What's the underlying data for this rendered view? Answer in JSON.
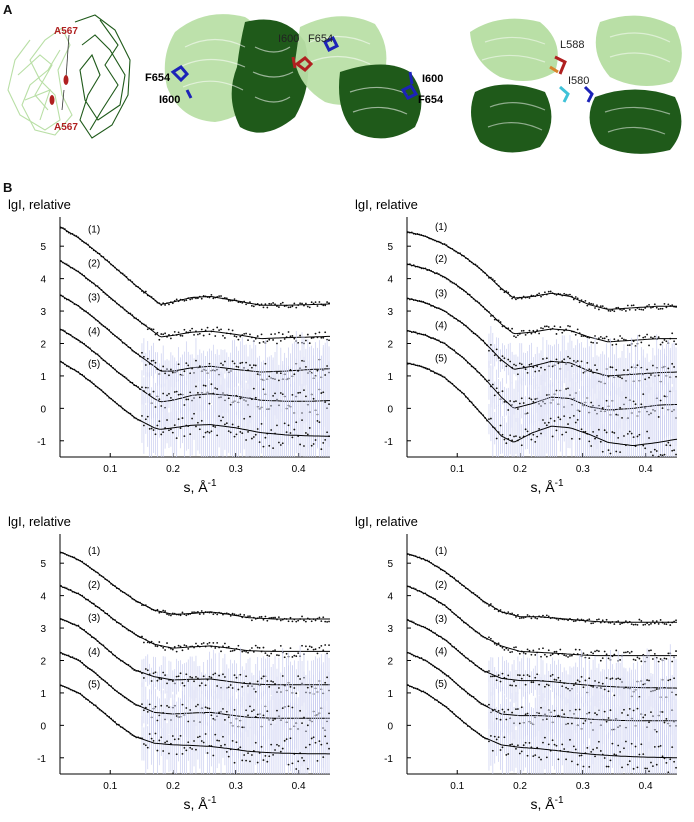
{
  "panel_a": {
    "letter": "A",
    "left_labels": [
      "A567",
      "A567"
    ],
    "middle_labels": [
      "F654",
      "I600",
      "I600",
      "F654",
      "I600",
      "F654"
    ],
    "right_labels": [
      "L588",
      "I580"
    ],
    "colors": {
      "light_green": "#b9dfa6",
      "dark_green": "#1f5a1a",
      "blue": "#1c23b8",
      "red": "#b02020",
      "orange": "#d9832a",
      "cyan": "#3fc2d8"
    }
  },
  "panel_b": {
    "letter": "B"
  },
  "chart_data": [
    {
      "type": "scatter",
      "ylabel": "lgI, relative",
      "xlabel": "s, Å",
      "xlabel_exp": "-1",
      "xlim": [
        0.02,
        0.45
      ],
      "ylim": [
        -1.5,
        5.9
      ],
      "xticks": [
        0.1,
        0.2,
        0.3,
        0.4
      ],
      "yticks": [
        -1,
        0,
        1,
        2,
        3,
        4,
        5
      ],
      "curve_labels": [
        "(1)",
        "(2)",
        "(3)",
        "(4)",
        "(5)"
      ],
      "series": [
        {
          "x": [
            0.02,
            0.05,
            0.08,
            0.11,
            0.14,
            0.17,
            0.18,
            0.2,
            0.23,
            0.26,
            0.3,
            0.34,
            0.38,
            0.42,
            0.45
          ],
          "y": [
            5.6,
            5.25,
            4.8,
            4.3,
            3.8,
            3.35,
            3.2,
            3.28,
            3.42,
            3.45,
            3.32,
            3.18,
            3.18,
            3.2,
            3.22
          ]
        },
        {
          "x": [
            0.02,
            0.05,
            0.08,
            0.11,
            0.14,
            0.17,
            0.18,
            0.2,
            0.23,
            0.26,
            0.3,
            0.34,
            0.38,
            0.42,
            0.45
          ],
          "y": [
            4.55,
            4.2,
            3.75,
            3.25,
            2.78,
            2.35,
            2.2,
            2.25,
            2.35,
            2.38,
            2.28,
            2.15,
            2.18,
            2.2,
            2.22
          ]
        },
        {
          "x": [
            0.02,
            0.05,
            0.08,
            0.11,
            0.14,
            0.17,
            0.18,
            0.2,
            0.23,
            0.26,
            0.3,
            0.34,
            0.38,
            0.42,
            0.45
          ],
          "y": [
            3.5,
            3.15,
            2.7,
            2.2,
            1.72,
            1.3,
            1.15,
            1.15,
            1.25,
            1.3,
            1.2,
            1.12,
            1.15,
            1.2,
            1.22
          ]
        },
        {
          "x": [
            0.02,
            0.05,
            0.08,
            0.11,
            0.14,
            0.17,
            0.18,
            0.2,
            0.23,
            0.26,
            0.3,
            0.34,
            0.38,
            0.42,
            0.45
          ],
          "y": [
            2.45,
            2.1,
            1.65,
            1.15,
            0.7,
            0.3,
            0.2,
            0.25,
            0.4,
            0.45,
            0.38,
            0.25,
            0.22,
            0.22,
            0.24
          ]
        },
        {
          "x": [
            0.02,
            0.05,
            0.08,
            0.11,
            0.14,
            0.17,
            0.18,
            0.2,
            0.23,
            0.26,
            0.3,
            0.34,
            0.38,
            0.42,
            0.45
          ],
          "y": [
            1.45,
            1.1,
            0.65,
            0.15,
            -0.3,
            -0.6,
            -0.65,
            -0.6,
            -0.52,
            -0.5,
            -0.6,
            -0.75,
            -0.82,
            -0.85,
            -0.86
          ]
        }
      ]
    },
    {
      "type": "scatter",
      "ylabel": "lgI, relative",
      "xlabel": "s, Å",
      "xlabel_exp": "-1",
      "xlim": [
        0.02,
        0.45
      ],
      "ylim": [
        -1.5,
        5.9
      ],
      "xticks": [
        0.1,
        0.2,
        0.3,
        0.4
      ],
      "yticks": [
        -1,
        0,
        1,
        2,
        3,
        4,
        5
      ],
      "curve_labels": [
        "(1)",
        "(2)",
        "(3)",
        "(4)",
        "(5)"
      ],
      "series": [
        {
          "x": [
            0.02,
            0.05,
            0.08,
            0.11,
            0.14,
            0.17,
            0.19,
            0.22,
            0.25,
            0.28,
            0.31,
            0.34,
            0.38,
            0.42,
            0.45
          ],
          "y": [
            5.45,
            5.3,
            5.05,
            4.7,
            4.25,
            3.7,
            3.4,
            3.45,
            3.55,
            3.45,
            3.2,
            3.05,
            3.1,
            3.15,
            3.15
          ]
        },
        {
          "x": [
            0.02,
            0.05,
            0.08,
            0.11,
            0.14,
            0.17,
            0.19,
            0.22,
            0.25,
            0.28,
            0.31,
            0.34,
            0.38,
            0.42,
            0.45
          ],
          "y": [
            4.45,
            4.3,
            4.05,
            3.65,
            3.15,
            2.6,
            2.3,
            2.35,
            2.45,
            2.4,
            2.2,
            2.05,
            2.1,
            2.15,
            2.15
          ]
        },
        {
          "x": [
            0.02,
            0.05,
            0.08,
            0.11,
            0.14,
            0.17,
            0.19,
            0.22,
            0.25,
            0.28,
            0.31,
            0.34,
            0.38,
            0.42,
            0.45
          ],
          "y": [
            3.4,
            3.25,
            3.0,
            2.6,
            2.1,
            1.5,
            1.2,
            1.3,
            1.45,
            1.4,
            1.15,
            1.0,
            1.05,
            1.1,
            1.12
          ]
        },
        {
          "x": [
            0.02,
            0.05,
            0.08,
            0.11,
            0.14,
            0.17,
            0.19,
            0.22,
            0.25,
            0.28,
            0.31,
            0.34,
            0.38,
            0.42,
            0.45
          ],
          "y": [
            2.4,
            2.25,
            2.0,
            1.55,
            1.0,
            0.35,
            0.0,
            0.15,
            0.35,
            0.3,
            0.05,
            -0.05,
            0.0,
            0.1,
            0.12
          ]
        },
        {
          "x": [
            0.02,
            0.05,
            0.08,
            0.11,
            0.14,
            0.17,
            0.19,
            0.22,
            0.25,
            0.28,
            0.31,
            0.34,
            0.38,
            0.42,
            0.45
          ],
          "y": [
            1.4,
            1.25,
            0.95,
            0.45,
            -0.2,
            -0.85,
            -1.05,
            -0.75,
            -0.55,
            -0.6,
            -0.8,
            -1.05,
            -1.15,
            -1.05,
            -0.95
          ]
        }
      ]
    },
    {
      "type": "scatter",
      "ylabel": "lgI, relative",
      "xlabel": "s, Å",
      "xlabel_exp": "-1",
      "xlim": [
        0.02,
        0.45
      ],
      "ylim": [
        -1.5,
        5.9
      ],
      "xticks": [
        0.1,
        0.2,
        0.3,
        0.4
      ],
      "yticks": [
        -1,
        0,
        1,
        2,
        3,
        4,
        5
      ],
      "curve_labels": [
        "(1)",
        "(2)",
        "(3)",
        "(4)",
        "(5)"
      ],
      "series": [
        {
          "x": [
            0.02,
            0.05,
            0.08,
            0.11,
            0.14,
            0.17,
            0.2,
            0.23,
            0.26,
            0.29,
            0.32,
            0.36,
            0.4,
            0.45
          ],
          "y": [
            5.35,
            5.1,
            4.7,
            4.25,
            3.85,
            3.55,
            3.42,
            3.45,
            3.5,
            3.42,
            3.32,
            3.28,
            3.28,
            3.28
          ]
        },
        {
          "x": [
            0.02,
            0.05,
            0.08,
            0.11,
            0.14,
            0.17,
            0.2,
            0.23,
            0.26,
            0.29,
            0.32,
            0.36,
            0.4,
            0.45
          ],
          "y": [
            4.3,
            4.05,
            3.65,
            3.2,
            2.8,
            2.5,
            2.38,
            2.42,
            2.45,
            2.38,
            2.3,
            2.28,
            2.28,
            2.28
          ]
        },
        {
          "x": [
            0.02,
            0.05,
            0.08,
            0.11,
            0.14,
            0.17,
            0.2,
            0.23,
            0.26,
            0.29,
            0.32,
            0.36,
            0.4,
            0.45
          ],
          "y": [
            3.3,
            3.05,
            2.6,
            2.1,
            1.7,
            1.5,
            1.4,
            1.42,
            1.43,
            1.35,
            1.28,
            1.25,
            1.25,
            1.25
          ]
        },
        {
          "x": [
            0.02,
            0.05,
            0.08,
            0.11,
            0.14,
            0.17,
            0.2,
            0.23,
            0.26,
            0.29,
            0.32,
            0.36,
            0.4,
            0.45
          ],
          "y": [
            2.25,
            2.0,
            1.55,
            1.05,
            0.65,
            0.4,
            0.35,
            0.38,
            0.4,
            0.32,
            0.25,
            0.22,
            0.22,
            0.22
          ]
        },
        {
          "x": [
            0.02,
            0.05,
            0.08,
            0.11,
            0.14,
            0.17,
            0.2,
            0.23,
            0.26,
            0.29,
            0.32,
            0.36,
            0.4,
            0.45
          ],
          "y": [
            1.25,
            1.0,
            0.55,
            0.05,
            -0.35,
            -0.55,
            -0.6,
            -0.62,
            -0.65,
            -0.72,
            -0.8,
            -0.85,
            -0.87,
            -0.88
          ]
        }
      ]
    },
    {
      "type": "scatter",
      "ylabel": "lgI, relative",
      "xlabel": "s, Å",
      "xlabel_exp": "-1",
      "xlim": [
        0.02,
        0.45
      ],
      "ylim": [
        -1.5,
        5.9
      ],
      "xticks": [
        0.1,
        0.2,
        0.3,
        0.4
      ],
      "yticks": [
        -1,
        0,
        1,
        2,
        3,
        4,
        5
      ],
      "curve_labels": [
        "(1)",
        "(2)",
        "(3)",
        "(4)",
        "(5)"
      ],
      "series": [
        {
          "x": [
            0.02,
            0.05,
            0.08,
            0.11,
            0.14,
            0.17,
            0.2,
            0.23,
            0.26,
            0.29,
            0.32,
            0.36,
            0.4,
            0.45
          ],
          "y": [
            5.3,
            5.1,
            4.75,
            4.3,
            3.85,
            3.5,
            3.35,
            3.35,
            3.3,
            3.25,
            3.2,
            3.18,
            3.18,
            3.18
          ]
        },
        {
          "x": [
            0.02,
            0.05,
            0.08,
            0.11,
            0.14,
            0.17,
            0.2,
            0.23,
            0.26,
            0.29,
            0.32,
            0.36,
            0.4,
            0.45
          ],
          "y": [
            4.3,
            4.05,
            3.7,
            3.2,
            2.75,
            2.45,
            2.28,
            2.25,
            2.22,
            2.18,
            2.15,
            2.15,
            2.15,
            2.15
          ]
        },
        {
          "x": [
            0.02,
            0.05,
            0.08,
            0.11,
            0.14,
            0.17,
            0.2,
            0.23,
            0.26,
            0.29,
            0.32,
            0.36,
            0.4,
            0.45
          ],
          "y": [
            3.25,
            3.0,
            2.65,
            2.15,
            1.7,
            1.45,
            1.38,
            1.38,
            1.33,
            1.27,
            1.22,
            1.18,
            1.16,
            1.15
          ]
        },
        {
          "x": [
            0.02,
            0.05,
            0.08,
            0.11,
            0.14,
            0.17,
            0.2,
            0.23,
            0.26,
            0.29,
            0.32,
            0.36,
            0.4,
            0.45
          ],
          "y": [
            2.25,
            2.0,
            1.6,
            1.1,
            0.65,
            0.35,
            0.3,
            0.3,
            0.27,
            0.22,
            0.18,
            0.15,
            0.14,
            0.14
          ]
        },
        {
          "x": [
            0.02,
            0.05,
            0.08,
            0.11,
            0.14,
            0.17,
            0.2,
            0.23,
            0.26,
            0.29,
            0.32,
            0.36,
            0.4,
            0.45
          ],
          "y": [
            1.25,
            1.0,
            0.6,
            0.1,
            -0.35,
            -0.6,
            -0.68,
            -0.72,
            -0.78,
            -0.85,
            -0.9,
            -0.95,
            -0.98,
            -1.0
          ]
        }
      ]
    }
  ]
}
